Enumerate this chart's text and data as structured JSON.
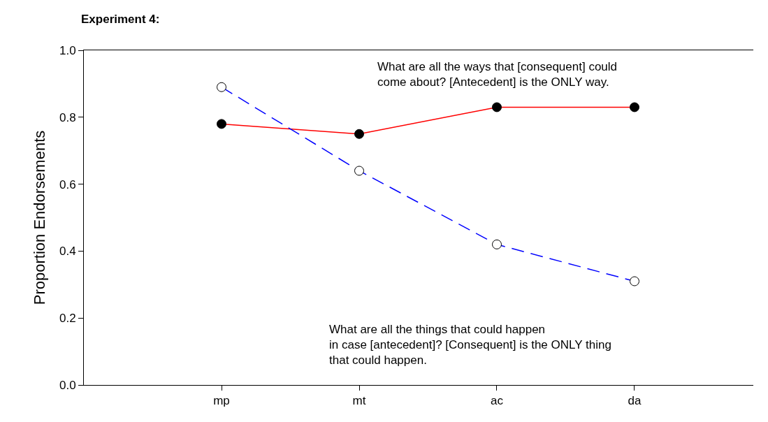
{
  "chart_data": {
    "type": "line",
    "title": "Experiment 4:",
    "ylabel": "Proportion Endorsements",
    "categories": [
      "mp",
      "mt",
      "ac",
      "da"
    ],
    "series": [
      {
        "color": "#ff0000",
        "line_style": "solid",
        "values": [
          0.78,
          0.75,
          0.83,
          0.83
        ]
      },
      {
        "color": "#0000ff",
        "line_style": "dashed",
        "values": [
          0.89,
          0.64,
          0.42,
          0.31
        ]
      }
    ],
    "annotations": [
      "What are all the ways that [consequent] could\ncome about? [Antecedent] is the ONLY way.",
      "What are all the things that could happen\nin case [antecedent]? [Consequent] is the ONLY thing\nthat could happen."
    ],
    "ylim": [
      0,
      1
    ],
    "yticks": [
      {
        "value": 0,
        "label": "0.0"
      },
      {
        "value": 0.2,
        "label": "0.2"
      },
      {
        "value": 0.4,
        "label": "0.4"
      },
      {
        "value": 0.6,
        "label": "0.6"
      },
      {
        "value": 0.8,
        "label": "0.8"
      },
      {
        "value": 1,
        "label": "1.0"
      }
    ],
    "grid": false,
    "legend": false,
    "marker": "circle"
  }
}
